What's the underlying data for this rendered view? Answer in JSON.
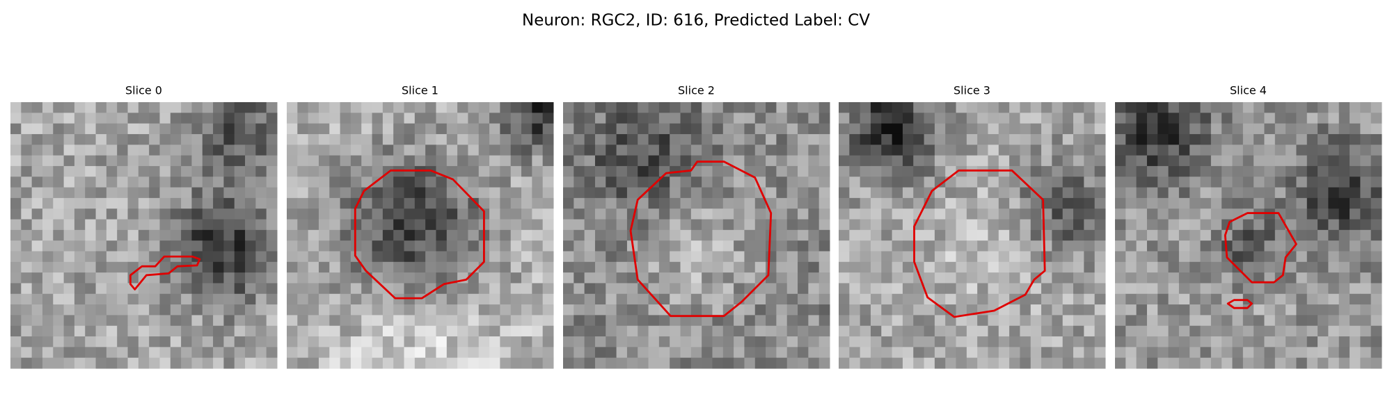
{
  "title": "Neuron: RGC2, ID: 616, Predicted Label: CV",
  "panels": [
    {
      "title": "Slice 0"
    },
    {
      "title": "Slice 1"
    },
    {
      "title": "Slice 2"
    },
    {
      "title": "Slice 3"
    },
    {
      "title": "Slice 4"
    }
  ]
}
